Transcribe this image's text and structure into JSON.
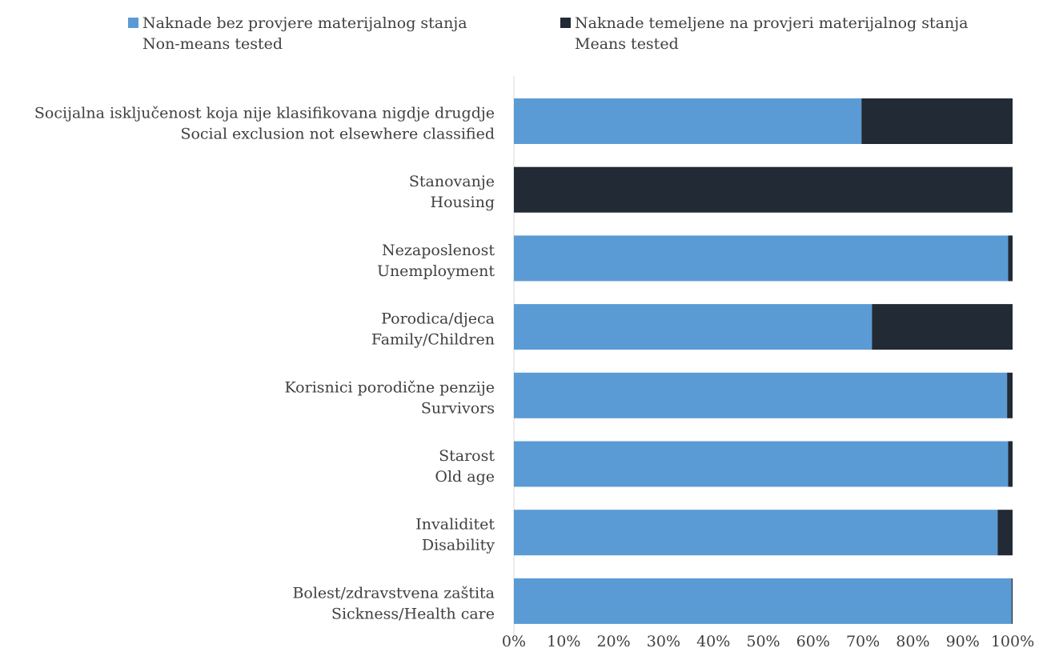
{
  "chart_data": {
    "type": "bar",
    "orientation": "horizontal",
    "stacked": "percent",
    "categories": [
      [
        "Socijalna isključenost koja nije klasifikovana nigdje drugdje",
        "Social exclusion not elsewhere classified"
      ],
      [
        "Stanovanje",
        "Housing"
      ],
      [
        "Nezaposlenost",
        "Unemployment"
      ],
      [
        "Porodica/djeca",
        "Family/Children"
      ],
      [
        "Korisnici porodične penzije",
        "Survivors"
      ],
      [
        "Starost",
        "Old age"
      ],
      [
        "Invaliditet",
        "Disability"
      ],
      [
        "Bolest/zdravstvena zaštita",
        "Sickness/Health care"
      ]
    ],
    "series": [
      {
        "name": [
          "Naknade bez provjere materijalnog stanja",
          "Non-means tested"
        ],
        "color": "#5B9BD5",
        "values": [
          69.7,
          0,
          99.1,
          71.8,
          98.9,
          99.1,
          97.0,
          99.8
        ]
      },
      {
        "name": [
          "Naknade temeljene na provjeri materijalnog stanja",
          "Means tested"
        ],
        "color": "#222A35",
        "values": [
          30.3,
          100,
          0.9,
          28.2,
          1.1,
          0.9,
          3.0,
          0.2
        ]
      }
    ],
    "xticks": [
      "0%",
      "10%",
      "20%",
      "30%",
      "40%",
      "50%",
      "60%",
      "70%",
      "80%",
      "90%",
      "100%"
    ],
    "xlim": [
      0,
      100
    ],
    "grid": false,
    "legend_position": "top"
  }
}
